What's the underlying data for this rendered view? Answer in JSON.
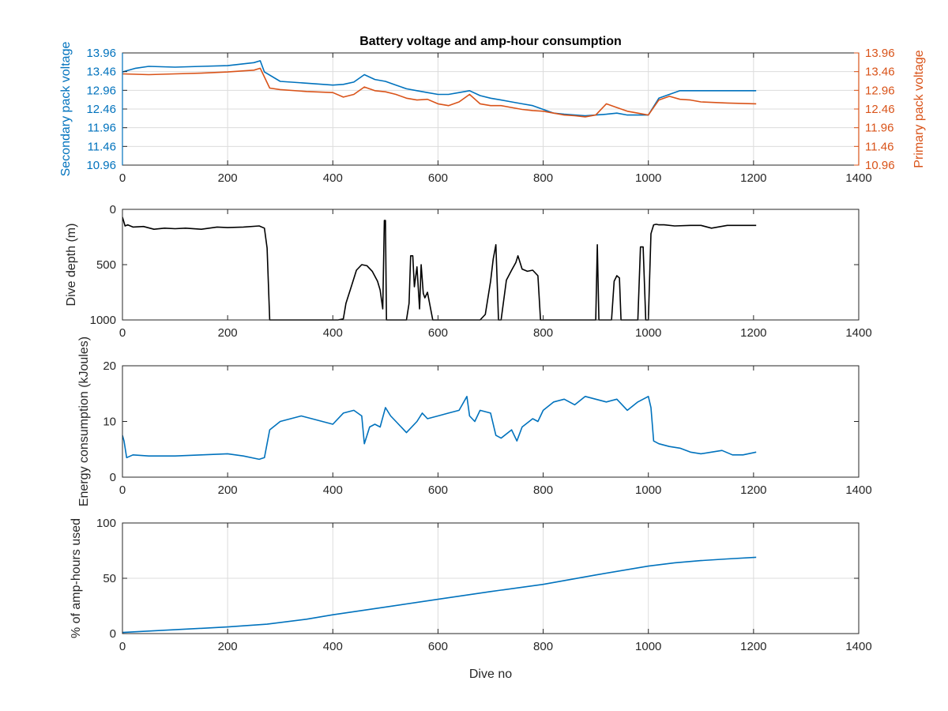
{
  "figure_title": "Battery voltage and amp-hour consumption",
  "colors": {
    "blue": "#0072BD",
    "orange": "#D95319",
    "black": "#000000",
    "grid": "#dcdcdc",
    "axis": "#262626"
  },
  "chart_data": [
    {
      "type": "line",
      "title": "Battery voltage and amp-hour consumption",
      "xlabel": "",
      "xlim": [
        0,
        1400
      ],
      "xticks": [
        0,
        200,
        400,
        600,
        800,
        1000,
        1200,
        1400
      ],
      "ylabel": "Secondary pack voltage",
      "ylim": [
        10.96,
        13.96
      ],
      "yticks": [
        10.96,
        11.46,
        11.96,
        12.46,
        12.96,
        13.46,
        13.96
      ],
      "y2label": "Primary pack voltage",
      "y2lim": [
        10.96,
        13.96
      ],
      "y2ticks": [
        10.96,
        11.46,
        11.96,
        12.46,
        12.96,
        13.46,
        13.96
      ],
      "grid": true,
      "series": [
        {
          "axis": "left",
          "color": "#0072BD",
          "x": [
            0,
            25,
            50,
            100,
            150,
            200,
            250,
            262,
            270,
            300,
            350,
            400,
            420,
            440,
            460,
            480,
            500,
            520,
            540,
            560,
            580,
            600,
            620,
            640,
            660,
            680,
            700,
            720,
            740,
            760,
            780,
            800,
            820,
            840,
            860,
            880,
            900,
            920,
            940,
            960,
            980,
            1000,
            1020,
            1040,
            1060,
            1080,
            1100,
            1150,
            1205
          ],
          "y": [
            13.45,
            13.55,
            13.6,
            13.58,
            13.6,
            13.62,
            13.7,
            13.75,
            13.45,
            13.2,
            13.15,
            13.1,
            13.12,
            13.18,
            13.38,
            13.25,
            13.2,
            13.1,
            13.0,
            12.95,
            12.9,
            12.85,
            12.85,
            12.9,
            12.95,
            12.82,
            12.75,
            12.7,
            12.65,
            12.6,
            12.55,
            12.45,
            12.35,
            12.32,
            12.3,
            12.28,
            12.3,
            12.32,
            12.35,
            12.3,
            12.3,
            12.3,
            12.75,
            12.85,
            12.95,
            12.95,
            12.95,
            12.95,
            12.95
          ]
        },
        {
          "axis": "right",
          "color": "#D95319",
          "x": [
            0,
            50,
            100,
            150,
            200,
            250,
            262,
            280,
            300,
            350,
            400,
            420,
            440,
            460,
            480,
            500,
            520,
            540,
            560,
            580,
            600,
            620,
            640,
            660,
            680,
            700,
            720,
            740,
            760,
            780,
            800,
            820,
            840,
            860,
            880,
            900,
            920,
            940,
            960,
            980,
            1000,
            1020,
            1040,
            1060,
            1080,
            1100,
            1150,
            1205
          ],
          "y": [
            13.4,
            13.38,
            13.4,
            13.42,
            13.45,
            13.5,
            13.55,
            13.02,
            12.98,
            12.93,
            12.9,
            12.78,
            12.85,
            13.05,
            12.95,
            12.92,
            12.85,
            12.75,
            12.7,
            12.72,
            12.6,
            12.55,
            12.65,
            12.85,
            12.6,
            12.55,
            12.55,
            12.5,
            12.45,
            12.42,
            12.4,
            12.35,
            12.3,
            12.28,
            12.25,
            12.3,
            12.6,
            12.5,
            12.4,
            12.35,
            12.3,
            12.7,
            12.8,
            12.72,
            12.7,
            12.65,
            12.62,
            12.6
          ]
        }
      ]
    },
    {
      "type": "line",
      "xlabel": "",
      "xlim": [
        0,
        1400
      ],
      "xticks": [
        0,
        200,
        400,
        600,
        800,
        1000,
        1200,
        1400
      ],
      "ylabel": "Dive depth (m)",
      "ylim": [
        0,
        1000
      ],
      "yreversed": true,
      "yticks": [
        0,
        500,
        1000
      ],
      "grid": false,
      "series": [
        {
          "color": "#000000",
          "x": [
            0,
            5,
            10,
            20,
            40,
            60,
            80,
            100,
            120,
            150,
            180,
            200,
            230,
            260,
            270,
            275,
            280,
            300,
            350,
            400,
            410,
            420,
            425,
            435,
            445,
            455,
            465,
            475,
            485,
            490,
            495,
            498,
            500,
            502,
            505,
            510,
            520,
            540,
            545,
            548,
            552,
            555,
            560,
            565,
            568,
            572,
            575,
            580,
            590,
            600,
            650,
            680,
            690,
            700,
            705,
            710,
            715,
            720,
            730,
            740,
            748,
            752,
            756,
            760,
            770,
            780,
            790,
            795,
            800,
            850,
            900,
            903,
            906,
            909,
            912,
            915,
            930,
            935,
            940,
            945,
            948,
            950,
            960,
            980,
            985,
            990,
            995,
            998,
            1000,
            1005,
            1010,
            1015,
            1020,
            1030,
            1050,
            1080,
            1100,
            1120,
            1150,
            1180,
            1205
          ],
          "y": [
            70,
            150,
            140,
            160,
            155,
            180,
            170,
            175,
            170,
            180,
            160,
            165,
            160,
            150,
            170,
            350,
            1000,
            1000,
            1000,
            1000,
            1000,
            990,
            850,
            700,
            550,
            500,
            510,
            560,
            650,
            730,
            900,
            100,
            100,
            1000,
            1000,
            1000,
            1000,
            1000,
            850,
            420,
            420,
            700,
            520,
            900,
            500,
            760,
            800,
            750,
            1000,
            1000,
            1000,
            1000,
            950,
            650,
            450,
            320,
            1000,
            1000,
            640,
            550,
            480,
            420,
            480,
            540,
            560,
            550,
            600,
            1000,
            1000,
            1000,
            1000,
            320,
            1000,
            1000,
            1000,
            1000,
            1000,
            650,
            600,
            620,
            1000,
            1000,
            1000,
            1000,
            340,
            340,
            1000,
            1000,
            1000,
            220,
            140,
            135,
            140,
            140,
            150,
            145,
            145,
            170,
            145,
            145,
            145
          ]
        }
      ]
    },
    {
      "type": "line",
      "xlabel": "",
      "xlim": [
        0,
        1400
      ],
      "xticks": [
        0,
        200,
        400,
        600,
        800,
        1000,
        1200,
        1400
      ],
      "ylabel": "Energy consumption (kJoules)",
      "ylim": [
        0,
        20
      ],
      "yticks": [
        0,
        10,
        20
      ],
      "grid": false,
      "series": [
        {
          "color": "#0072BD",
          "x": [
            0,
            3,
            8,
            20,
            50,
            100,
            150,
            200,
            230,
            260,
            270,
            280,
            300,
            320,
            340,
            360,
            380,
            400,
            420,
            440,
            455,
            460,
            470,
            480,
            490,
            500,
            510,
            520,
            540,
            560,
            570,
            580,
            600,
            620,
            640,
            655,
            660,
            670,
            680,
            700,
            710,
            720,
            740,
            750,
            760,
            780,
            790,
            800,
            820,
            840,
            860,
            880,
            900,
            920,
            940,
            960,
            980,
            1000,
            1005,
            1010,
            1020,
            1040,
            1060,
            1080,
            1100,
            1120,
            1140,
            1160,
            1180,
            1205
          ],
          "y": [
            7.5,
            6.5,
            3.5,
            4.0,
            3.8,
            3.8,
            4.0,
            4.2,
            3.8,
            3.2,
            3.5,
            8.5,
            10.0,
            10.5,
            11.0,
            10.5,
            10.0,
            9.5,
            11.5,
            12.0,
            11.0,
            6.0,
            9.0,
            9.5,
            9.0,
            12.5,
            11.0,
            10.0,
            8.0,
            10.0,
            11.5,
            10.5,
            11.0,
            11.5,
            12.0,
            14.5,
            11.0,
            10.0,
            12.0,
            11.5,
            7.5,
            7.0,
            8.5,
            6.5,
            9.0,
            10.5,
            10.0,
            12.0,
            13.5,
            14.0,
            13.0,
            14.5,
            14.0,
            13.5,
            14.0,
            12.0,
            13.5,
            14.5,
            12.5,
            6.5,
            6.0,
            5.5,
            5.2,
            4.5,
            4.2,
            4.5,
            4.8,
            4.0,
            4.0,
            4.5
          ]
        }
      ]
    },
    {
      "type": "line",
      "xlabel": "Dive no",
      "xlim": [
        0,
        1400
      ],
      "xticks": [
        0,
        200,
        400,
        600,
        800,
        1000,
        1200,
        1400
      ],
      "ylabel": "% of amp-hours used",
      "ylim": [
        0,
        100
      ],
      "yticks": [
        0,
        50,
        100
      ],
      "grid": true,
      "series": [
        {
          "color": "#0072BD",
          "x": [
            0,
            100,
            200,
            275,
            350,
            400,
            500,
            600,
            700,
            800,
            900,
            1000,
            1050,
            1100,
            1150,
            1205
          ],
          "y": [
            1,
            3.5,
            6,
            8.5,
            13,
            17,
            24,
            31,
            38,
            44.5,
            53,
            61,
            64,
            66,
            67.5,
            69
          ]
        }
      ]
    }
  ]
}
